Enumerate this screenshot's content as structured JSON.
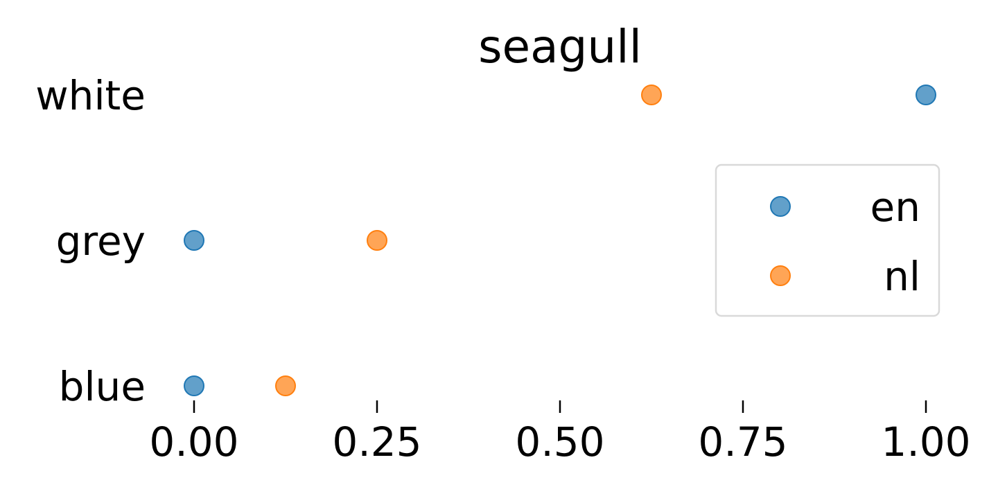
{
  "chart_data": {
    "type": "scatter",
    "title": "seagull",
    "xlabel": "",
    "ylabel": "",
    "categories": [
      "white",
      "grey",
      "blue"
    ],
    "xlim": [
      0,
      1
    ],
    "xticks": [
      "0.00",
      "0.25",
      "0.50",
      "0.75",
      "1.00"
    ],
    "grid": false,
    "legend_position": "right",
    "series": [
      {
        "name": "en",
        "color": "#1f77b4",
        "values": [
          1.0,
          0.0,
          0.0
        ]
      },
      {
        "name": "nl",
        "color": "#ff7f0e",
        "values": [
          0.625,
          0.25,
          0.125
        ]
      }
    ]
  }
}
